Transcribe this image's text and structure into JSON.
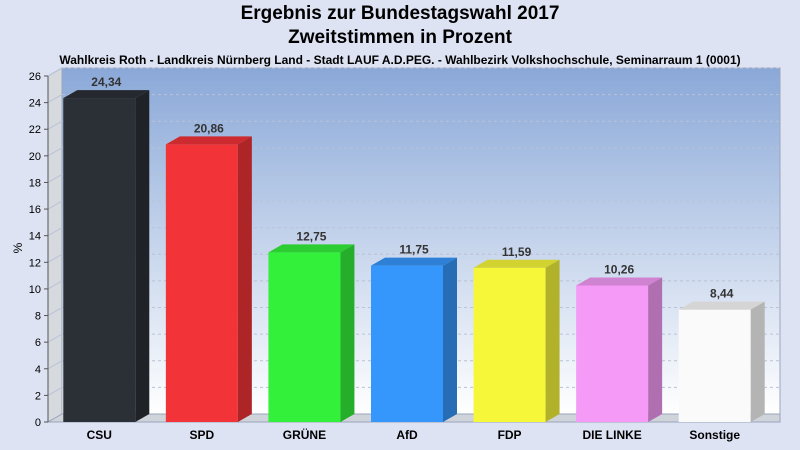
{
  "header": {
    "title": "Ergebnis zur Bundestagswahl 2017",
    "subtitle": "Zweitstimmen in Prozent",
    "district": "Wahlkreis Roth - Landkreis Nürnberg Land - Stadt LAUF A.D.PEG. - Wahlbezirk Volkshochschule, Seminarraum 1 (0001)"
  },
  "chart_data": {
    "type": "bar",
    "title": "Ergebnis zur Bundestagswahl 2017",
    "subtitle": "Zweitstimmen in Prozent",
    "xlabel": "",
    "ylabel": "%",
    "ylim": [
      0,
      26
    ],
    "yticks": [
      "0",
      "2",
      "4",
      "6",
      "8",
      "10",
      "12",
      "14",
      "16",
      "18",
      "20",
      "22",
      "24",
      "26"
    ],
    "grid": true,
    "categories": [
      "CSU",
      "SPD",
      "GRÜNE",
      "AfD",
      "FDP",
      "DIE LINKE",
      "Sonstige"
    ],
    "values": [
      24.34,
      20.86,
      12.75,
      11.75,
      11.59,
      10.26,
      8.44
    ],
    "value_labels": [
      "24,34",
      "20,86",
      "12,75",
      "11,75",
      "11,59",
      "10,26",
      "8,44"
    ],
    "colors": [
      "#2b2f36",
      "#f23338",
      "#33f13b",
      "#3597fb",
      "#f7f73a",
      "#f59af6",
      "#fafafa"
    ]
  }
}
